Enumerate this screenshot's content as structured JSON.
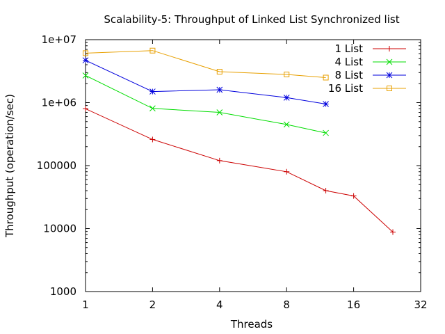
{
  "chart_data": {
    "type": "line",
    "title": "Scalability-5: Throughput of Linked List Synchronized list",
    "xlabel": "Threads",
    "ylabel": "Throughput (operation/sec)",
    "x_scale": "log2",
    "y_scale": "log10",
    "xlim": [
      1,
      32
    ],
    "ylim": [
      1000,
      10000000
    ],
    "x_ticks": [
      1,
      2,
      4,
      8,
      16,
      32
    ],
    "x_tick_labels": [
      "1",
      "2",
      "4",
      "8",
      "16",
      "32"
    ],
    "y_ticks": [
      1000,
      10000,
      100000,
      1000000,
      10000000
    ],
    "y_tick_labels": [
      "1000",
      "10000",
      "100000",
      "1e+06",
      "1e+07"
    ],
    "grid": false,
    "legend_position": "top-right",
    "series": [
      {
        "name": "1 List",
        "color": "#cc0000",
        "marker": "plus",
        "points": [
          [
            1,
            800000
          ],
          [
            2,
            260000
          ],
          [
            4,
            120000
          ],
          [
            8,
            80000
          ],
          [
            12,
            40000
          ],
          [
            16,
            33000
          ],
          [
            24,
            8800
          ]
        ]
      },
      {
        "name": "4 List",
        "color": "#00dd00",
        "marker": "x",
        "points": [
          [
            1,
            2700000
          ],
          [
            2,
            810000
          ],
          [
            4,
            700000
          ],
          [
            8,
            450000
          ],
          [
            12,
            330000
          ]
        ]
      },
      {
        "name": "8 List",
        "color": "#0000dd",
        "marker": "star",
        "points": [
          [
            1,
            4700000
          ],
          [
            2,
            1500000
          ],
          [
            4,
            1600000
          ],
          [
            8,
            1200000
          ],
          [
            12,
            950000
          ]
        ]
      },
      {
        "name": "16 List",
        "color": "#e8a000",
        "marker": "square",
        "points": [
          [
            1,
            6100000
          ],
          [
            2,
            6700000
          ],
          [
            4,
            3100000
          ],
          [
            8,
            2800000
          ],
          [
            12,
            2500000
          ]
        ]
      }
    ]
  }
}
